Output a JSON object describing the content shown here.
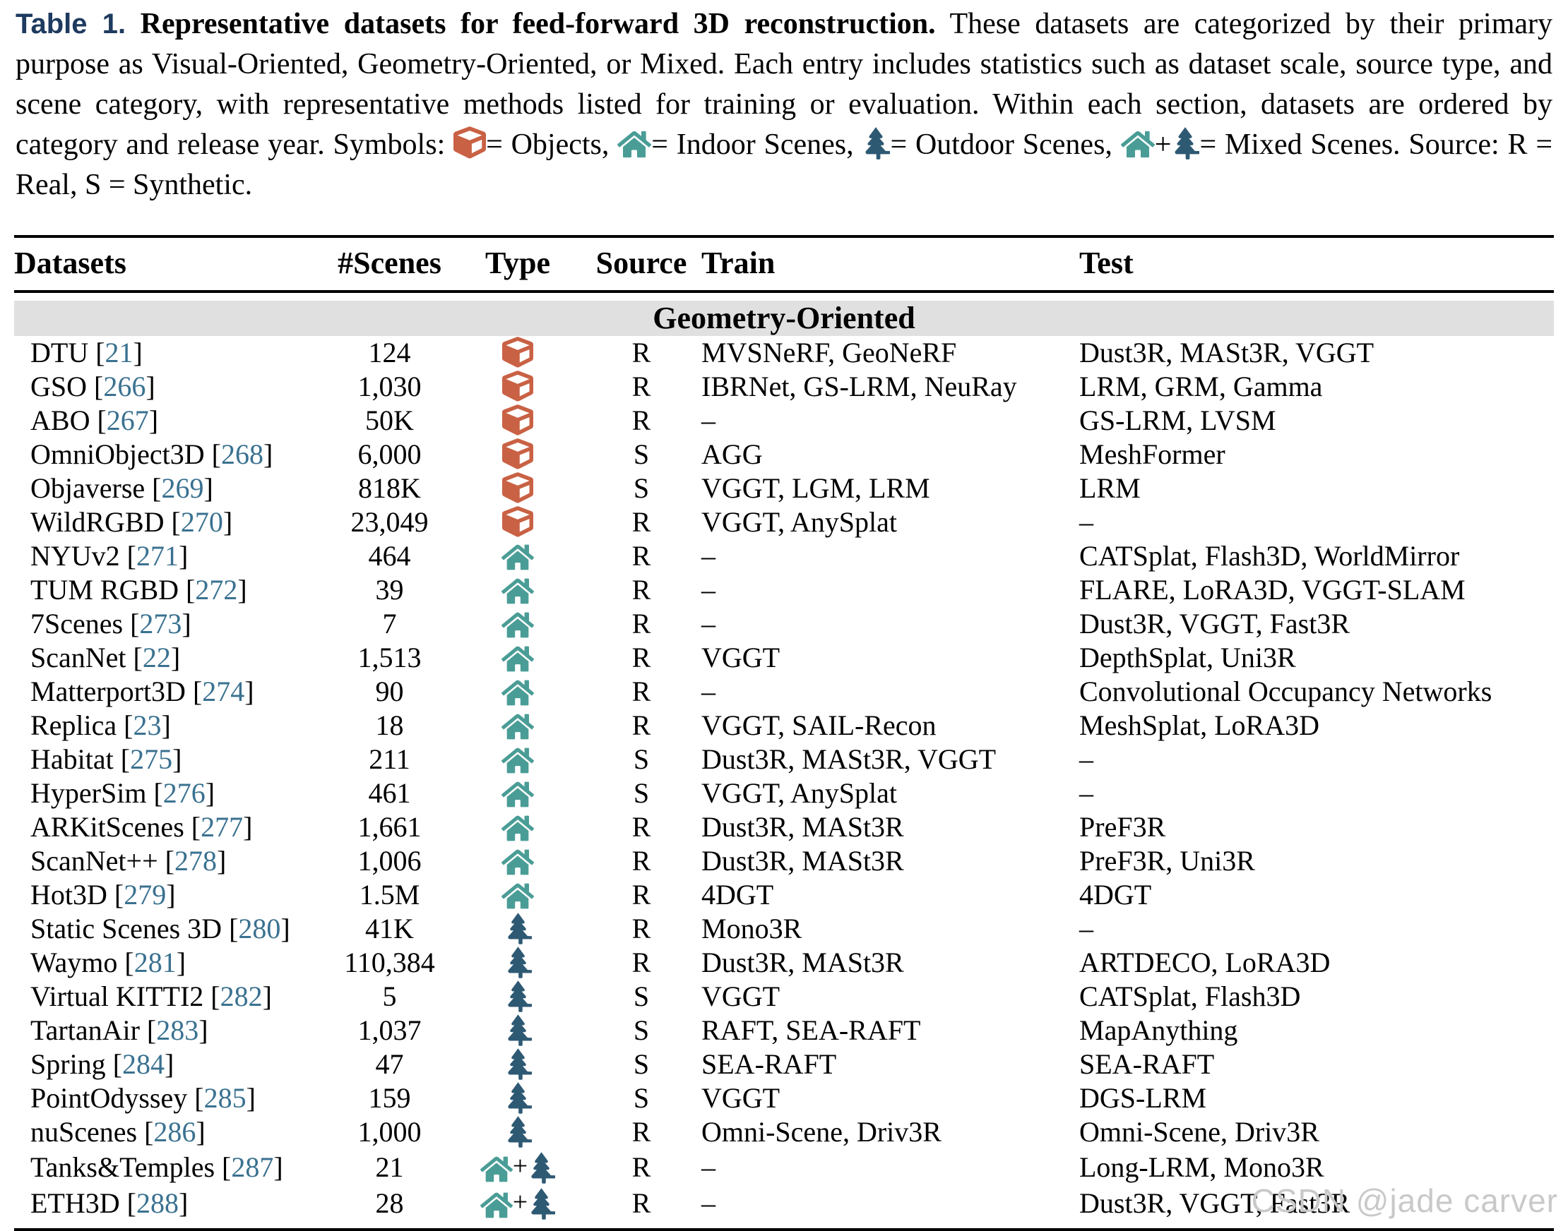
{
  "colors": {
    "accent_navy": "#1e3a5f",
    "citation": "#3a7190",
    "object_icon": "#c96144",
    "indoor_icon": "#4a9d96",
    "outdoor_icon": "#2e5973",
    "section_band": "#e0e0e0",
    "watermark": "#c9c9c9"
  },
  "caption": {
    "label": "Table 1.",
    "title": " Representative datasets for feed-forward 3D reconstruction.",
    "body": " These datasets are categorized by their primary purpose as Visual-Oriented, Geometry-Oriented, or Mixed. Each entry includes statistics such as dataset scale, source type, and scene category, with representative methods listed for training or evaluation. Within each section, datasets are ordered by category and release year. Symbols: ",
    "objects_label": "= Objects, ",
    "indoor_label": "= Indoor Scenes, ",
    "outdoor_label": "= Outdoor Scenes, ",
    "mixed_separator": "+",
    "mixed_label": "= Mixed Scenes. Source: R = Real, S = Synthetic."
  },
  "table": {
    "headers": [
      "Datasets",
      "#Scenes",
      "Type",
      "Source",
      "Train",
      "Test"
    ],
    "section_title": "Geometry-Oriented",
    "citation_brackets": [
      "[",
      "]"
    ],
    "type_mixed_separator": "+",
    "icon_legend": {
      "object": "cube-icon",
      "indoor": "house-icon",
      "outdoor": "tree-icon",
      "mixed": "house-plus-tree-icon"
    },
    "rows": [
      {
        "name": "DTU",
        "ref": "21",
        "scenes": "124",
        "type": "object",
        "source": "R",
        "train": "MVSNeRF, GeoNeRF",
        "test": "Dust3R, MASt3R, VGGT"
      },
      {
        "name": "GSO",
        "ref": "266",
        "scenes": "1,030",
        "type": "object",
        "source": "R",
        "train": "IBRNet, GS-LRM, NeuRay",
        "test": "LRM, GRM, Gamma"
      },
      {
        "name": "ABO",
        "ref": "267",
        "scenes": "50K",
        "type": "object",
        "source": "R",
        "train": "–",
        "test": "GS-LRM, LVSM"
      },
      {
        "name": "OmniObject3D",
        "ref": "268",
        "scenes": "6,000",
        "type": "object",
        "source": "S",
        "train": "AGG",
        "test": "MeshFormer"
      },
      {
        "name": "Objaverse",
        "ref": "269",
        "scenes": "818K",
        "type": "object",
        "source": "S",
        "train": "VGGT, LGM, LRM",
        "test": "LRM"
      },
      {
        "name": "WildRGBD",
        "ref": "270",
        "scenes": "23,049",
        "type": "object",
        "source": "R",
        "train": "VGGT, AnySplat",
        "test": "–"
      },
      {
        "name": "NYUv2",
        "ref": "271",
        "scenes": "464",
        "type": "indoor",
        "source": "R",
        "train": "–",
        "test": "CATSplat, Flash3D, WorldMirror"
      },
      {
        "name": "TUM RGBD",
        "ref": "272",
        "scenes": "39",
        "type": "indoor",
        "source": "R",
        "train": "–",
        "test": "FLARE, LoRA3D, VGGT-SLAM"
      },
      {
        "name": "7Scenes",
        "ref": "273",
        "scenes": "7",
        "type": "indoor",
        "source": "R",
        "train": "–",
        "test": "Dust3R, VGGT, Fast3R"
      },
      {
        "name": "ScanNet",
        "ref": "22",
        "scenes": "1,513",
        "type": "indoor",
        "source": "R",
        "train": "VGGT",
        "test": "DepthSplat, Uni3R"
      },
      {
        "name": "Matterport3D",
        "ref": "274",
        "scenes": "90",
        "type": "indoor",
        "source": "R",
        "train": "–",
        "test": "Convolutional Occupancy Networks"
      },
      {
        "name": "Replica",
        "ref": "23",
        "scenes": "18",
        "type": "indoor",
        "source": "R",
        "train": "VGGT, SAIL-Recon",
        "test": "MeshSplat, LoRA3D"
      },
      {
        "name": "Habitat",
        "ref": "275",
        "scenes": "211",
        "type": "indoor",
        "source": "S",
        "train": "Dust3R, MASt3R, VGGT",
        "test": "–"
      },
      {
        "name": "HyperSim",
        "ref": "276",
        "scenes": "461",
        "type": "indoor",
        "source": "S",
        "train": "VGGT, AnySplat",
        "test": "–"
      },
      {
        "name": "ARKitScenes",
        "ref": "277",
        "scenes": "1,661",
        "type": "indoor",
        "source": "R",
        "train": "Dust3R, MASt3R",
        "test": "PreF3R"
      },
      {
        "name": "ScanNet++",
        "ref": "278",
        "scenes": "1,006",
        "type": "indoor",
        "source": "R",
        "train": "Dust3R, MASt3R",
        "test": "PreF3R, Uni3R"
      },
      {
        "name": "Hot3D",
        "ref": "279",
        "scenes": "1.5M",
        "type": "indoor",
        "source": "R",
        "train": "4DGT",
        "test": "4DGT"
      },
      {
        "name": "Static Scenes 3D",
        "ref": "280",
        "scenes": "41K",
        "type": "outdoor",
        "source": "R",
        "train": "Mono3R",
        "test": "–"
      },
      {
        "name": "Waymo",
        "ref": "281",
        "scenes": "110,384",
        "type": "outdoor",
        "source": "R",
        "train": "Dust3R, MASt3R",
        "test": "ARTDECO, LoRA3D"
      },
      {
        "name": "Virtual KITTI2",
        "ref": "282",
        "scenes": "5",
        "type": "outdoor",
        "source": "S",
        "train": "VGGT",
        "test": "CATSplat, Flash3D"
      },
      {
        "name": "TartanAir",
        "ref": "283",
        "scenes": "1,037",
        "type": "outdoor",
        "source": "S",
        "train": "RAFT, SEA-RAFT",
        "test": "MapAnything"
      },
      {
        "name": "Spring",
        "ref": "284",
        "scenes": "47",
        "type": "outdoor",
        "source": "S",
        "train": "SEA-RAFT",
        "test": "SEA-RAFT"
      },
      {
        "name": "PointOdyssey",
        "ref": "285",
        "scenes": "159",
        "type": "outdoor",
        "source": "S",
        "train": "VGGT",
        "test": "DGS-LRM"
      },
      {
        "name": "nuScenes",
        "ref": "286",
        "scenes": "1,000",
        "type": "outdoor",
        "source": "R",
        "train": "Omni-Scene, Driv3R",
        "test": "Omni-Scene, Driv3R"
      },
      {
        "name": "Tanks&Temples",
        "ref": "287",
        "scenes": "21",
        "type": "mixed",
        "source": "R",
        "train": "–",
        "test": "Long-LRM, Mono3R"
      },
      {
        "name": "ETH3D",
        "ref": "288",
        "scenes": "28",
        "type": "mixed",
        "source": "R",
        "train": "–",
        "test": "Dust3R, VGGT, Fast3R"
      }
    ]
  },
  "watermark": {
    "text": "CSDN @jade carver"
  }
}
